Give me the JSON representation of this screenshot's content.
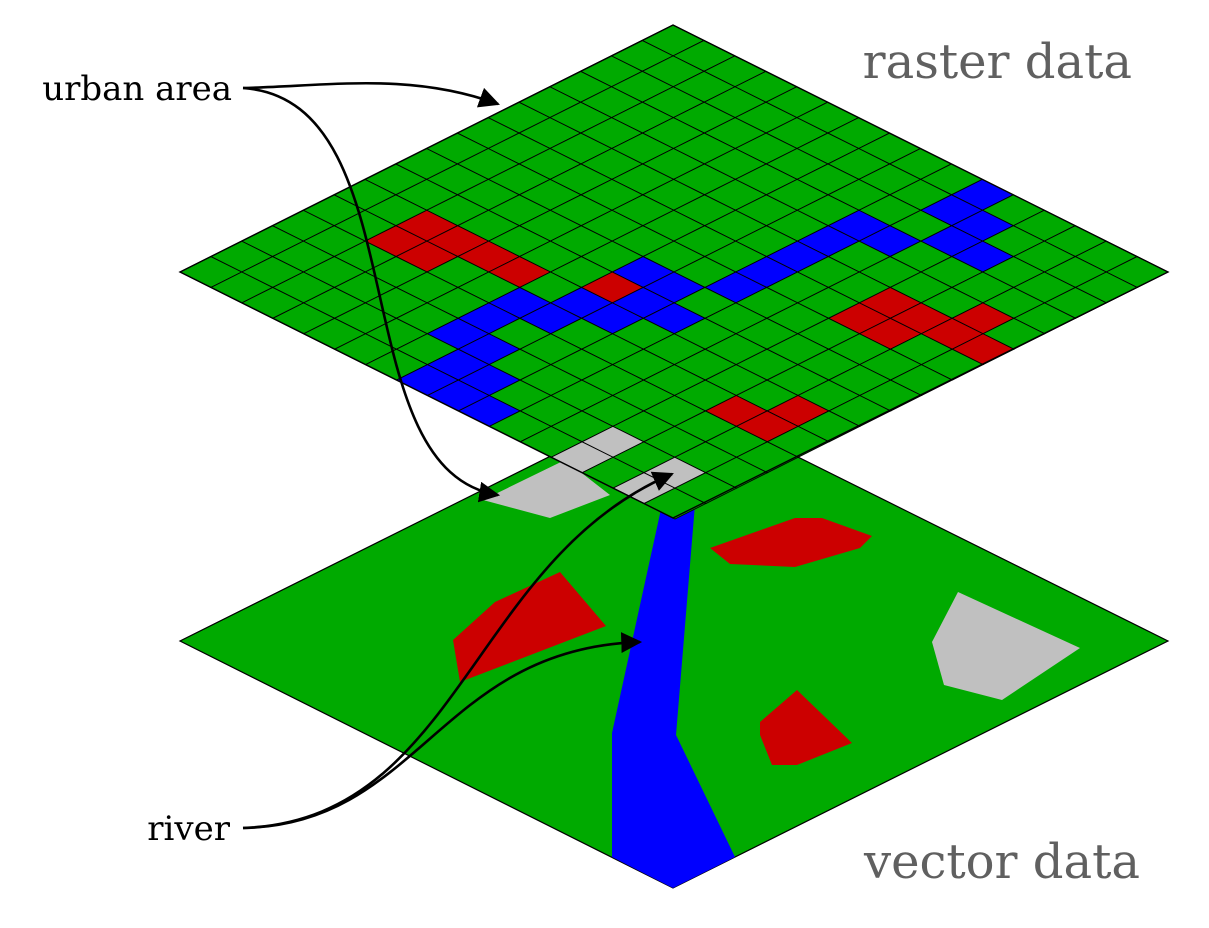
{
  "labels": {
    "raster_title": "raster data",
    "vector_title": "vector data",
    "urban_callout": "urban area",
    "river_callout": "river"
  },
  "colors": {
    "land": "#00aa00",
    "water": "#0000ff",
    "urban": "#c0c0c0",
    "built": "#cc0000",
    "grid_line": "#000000",
    "title_text": "#606060",
    "callout_text": "#000000"
  },
  "raster_grid": {
    "size": 16,
    "legend": {
      "g": "land",
      "b": "water",
      "u": "urban",
      "r": "built"
    },
    "rows": [
      "ggggggggggbggggg",
      "ggggggggggbbgggg",
      "gggggggggggbbggg",
      "gggggggggbbggggg",
      "gggggggggbggggrg",
      "gggggggggbggrrrr",
      "gggggggggbggrrgg",
      "gggggggggbgggggg",
      "gggggggbbggggggg",
      "gggggggrbbgggggg",
      "ggrrrrgbbgggggrg",
      "ggrrggbbgggggrrg",
      "ggggggbggggggggg",
      "ggggggbbgggggggg",
      "gggggggbbgggugug",
      "gggggggbbbggugug"
    ]
  },
  "vector_features": [
    {
      "name": "urban-polygon",
      "kind": "urban",
      "points": [
        [
          483,
          500
        ],
        [
          565,
          460
        ],
        [
          610,
          495
        ],
        [
          550,
          518
        ]
      ]
    },
    {
      "name": "built-polygon",
      "kind": "built",
      "points": [
        [
          453,
          640
        ],
        [
          495,
          602
        ],
        [
          560,
          572
        ],
        [
          606,
          626
        ],
        [
          460,
          682
        ]
      ]
    },
    {
      "name": "built-polygon",
      "kind": "built",
      "points": [
        [
          710,
          548
        ],
        [
          795,
          518
        ],
        [
          822,
          518
        ],
        [
          872,
          536
        ],
        [
          860,
          548
        ],
        [
          795,
          567
        ],
        [
          730,
          564
        ]
      ]
    },
    {
      "name": "urban-polygon",
      "kind": "urban",
      "points": [
        [
          958,
          592
        ],
        [
          1080,
          648
        ],
        [
          1002,
          700
        ],
        [
          944,
          685
        ],
        [
          932,
          642
        ]
      ]
    },
    {
      "name": "built-polygon",
      "kind": "built",
      "points": [
        [
          760,
          722
        ],
        [
          797,
          690
        ],
        [
          852,
          743
        ],
        [
          797,
          765
        ],
        [
          772,
          765
        ],
        [
          760,
          735
        ]
      ]
    },
    {
      "name": "river-polygon",
      "kind": "water",
      "points": [
        [
          663,
          500
        ],
        [
          697,
          480
        ],
        [
          676,
          735
        ],
        [
          735,
          857
        ],
        [
          673,
          888
        ],
        [
          612,
          857
        ],
        [
          612,
          733
        ]
      ]
    }
  ]
}
